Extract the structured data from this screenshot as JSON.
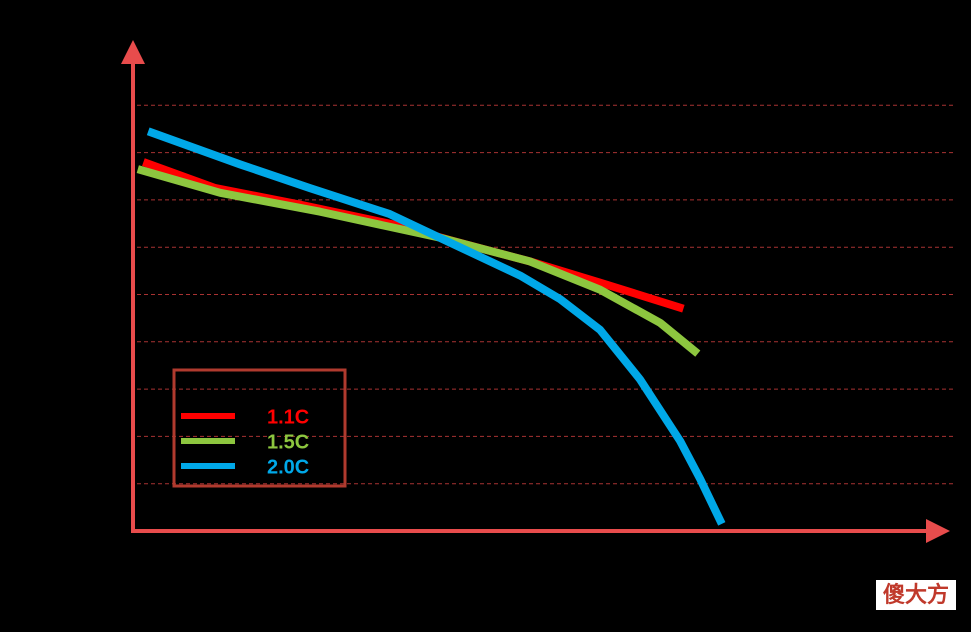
{
  "chart_data": {
    "type": "line",
    "ylim": [
      0,
      10
    ],
    "yticks": [
      1,
      2,
      3,
      4,
      5,
      6,
      7,
      8,
      9
    ],
    "xlim": [
      0,
      100
    ],
    "grid": true,
    "legend_position": "lower left",
    "series": [
      {
        "name": "1.1C",
        "color": "#ff0000",
        "x": [
          1.3,
          10.3,
          20.9,
          33.4,
          39.6,
          49.6,
          58.4,
          68.8
        ],
        "values": [
          7.8,
          7.25,
          6.9,
          6.45,
          6.15,
          5.7,
          5.25,
          4.7
        ]
      },
      {
        "name": "1.5C",
        "color": "#8dc63f",
        "x": [
          0.6,
          10.9,
          23.4,
          38.4,
          49.6,
          58.4,
          65.9,
          70.6
        ],
        "values": [
          7.65,
          7.15,
          6.75,
          6.2,
          5.7,
          5.1,
          4.4,
          3.75
        ]
      },
      {
        "name": "2.0C",
        "color": "#00a8e8",
        "x": [
          1.9,
          13.4,
          22.1,
          32.1,
          39.6,
          48.4,
          53.4,
          58.4,
          63.4,
          68.4,
          70.9,
          73.6
        ],
        "values": [
          8.45,
          7.75,
          7.25,
          6.7,
          6.1,
          5.4,
          4.9,
          4.25,
          3.2,
          1.9,
          1.1,
          0.15
        ]
      }
    ]
  },
  "watermark": "傻大方"
}
